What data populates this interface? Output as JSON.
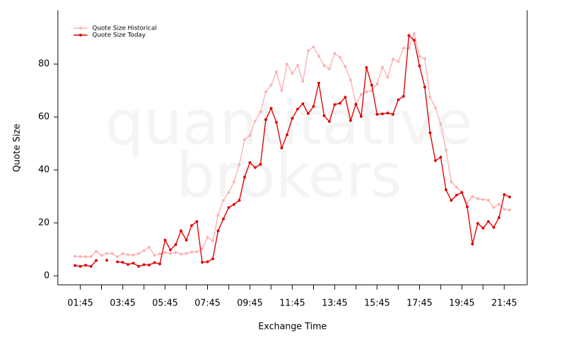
{
  "chart_data": {
    "type": "line",
    "watermark": [
      "quantitative",
      "brokers"
    ],
    "x_label": "Exchange Time",
    "y_label": "Quote Size",
    "legend": "top-left",
    "categories": [
      null,
      "01:45",
      null,
      null,
      null,
      null,
      null,
      null,
      null,
      "03:45",
      null,
      null,
      null,
      null,
      null,
      null,
      null,
      "05:45",
      null,
      null,
      null,
      null,
      null,
      null,
      null,
      "07:45",
      null,
      null,
      null,
      null,
      null,
      null,
      null,
      "09:45",
      null,
      null,
      null,
      null,
      null,
      null,
      null,
      "11:45",
      null,
      null,
      null,
      null,
      null,
      null,
      null,
      "13:45",
      null,
      null,
      null,
      null,
      null,
      null,
      null,
      "15:45",
      null,
      null,
      null,
      null,
      null,
      null,
      null,
      "17:45",
      null,
      null,
      null,
      null,
      null,
      null,
      null,
      "19:45",
      null,
      null,
      null,
      null,
      null,
      null,
      null,
      "21:45",
      null
    ],
    "series": [
      {
        "name": "Quote Size Historical",
        "color": "#ffb0b0",
        "values": [
          7.4,
          7.3,
          7.2,
          7.3,
          9.2,
          7.7,
          8.5,
          8.4,
          7.2,
          8.4,
          8.0,
          7.8,
          8.4,
          9.5,
          10.8,
          7.8,
          8.3,
          8.8,
          8.5,
          8.8,
          8.2,
          8.5,
          9.0,
          9.1,
          10.2,
          14.5,
          13.2,
          23,
          28.5,
          31.5,
          35.5,
          42,
          51.5,
          53,
          58.5,
          62,
          69.5,
          72,
          77,
          70,
          80,
          76.5,
          79.5,
          73.5,
          85,
          86.5,
          83,
          79.5,
          78.2,
          84,
          82.5,
          79,
          74,
          65,
          68.5,
          69.5,
          70,
          72.5,
          78.8,
          75,
          81.8,
          81,
          86,
          86,
          91.5,
          83,
          82,
          67.5,
          63.5,
          57.3,
          47.5,
          35.5,
          33.5,
          31.5,
          27.5,
          30,
          29.2,
          28.8,
          28.6,
          25.8,
          27,
          25.1,
          24.9
        ]
      },
      {
        "name": "Quote Size Today",
        "color": "#e00000",
        "values": [
          3.9,
          3.6,
          4,
          3.6,
          5.8,
          null,
          5.9,
          null,
          5.3,
          5.1,
          4.3,
          4.8,
          3.6,
          4.2,
          4.1,
          5,
          4.5,
          13.5,
          9.8,
          11.8,
          17,
          13.5,
          19,
          20.5,
          5.1,
          5.3,
          6.4,
          17,
          21.5,
          25.8,
          27,
          28.5,
          37.3,
          42.8,
          40.9,
          42.1,
          59,
          63.3,
          58,
          48.3,
          53.3,
          59.5,
          63,
          65,
          61.3,
          64,
          72.8,
          60.5,
          58.3,
          64.7,
          65.2,
          67.5,
          58.7,
          64.8,
          60.2,
          78.7,
          72,
          61,
          61.2,
          61.5,
          61,
          66.5,
          67.8,
          90.8,
          89,
          79.3,
          71.3,
          54,
          43.5,
          44.8,
          32.5,
          28.5,
          30.5,
          31.5,
          26.1,
          12,
          19.8,
          18,
          20.5,
          18.3,
          22,
          30.7,
          29.8
        ]
      }
    ],
    "ylim": [
      -3.4,
      100.3
    ],
    "yticks": [
      0,
      20,
      40,
      60,
      80
    ]
  }
}
